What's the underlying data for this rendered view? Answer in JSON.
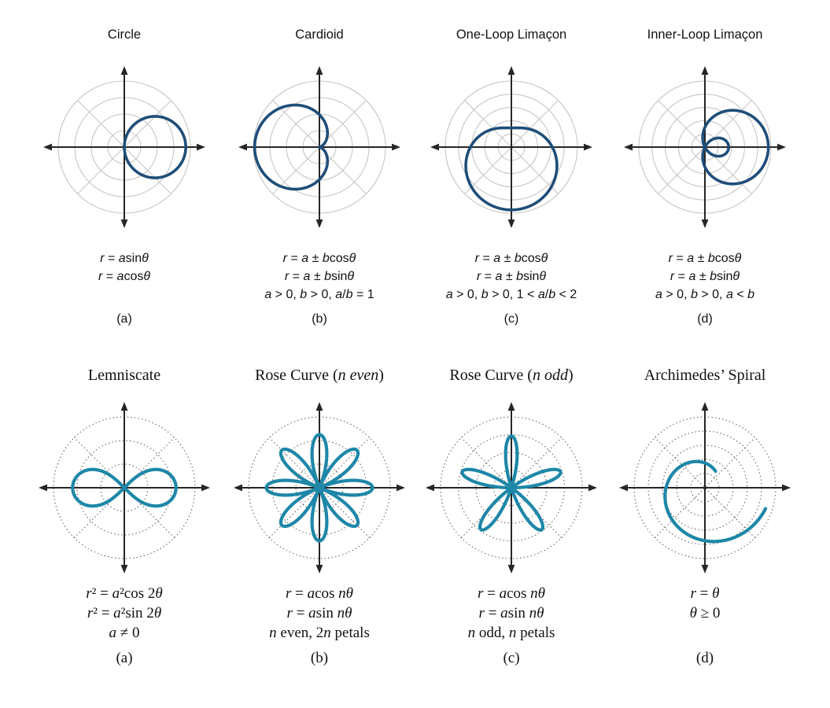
{
  "colors": {
    "background": "#ffffff",
    "text": "#111111",
    "axis": "#262626",
    "grid_solid": "#c6c6c6",
    "grid_dotted": "#4d4d4d",
    "curve_top": "#1f4e79",
    "curve_bottom": "#1e87a8"
  },
  "chart_data": [
    {
      "type": "line",
      "plot_style": "polar",
      "title": "Circle",
      "label": "(a)",
      "equations": [
        "r = asinθ",
        "r = acosθ"
      ],
      "grid": {
        "rings": 4,
        "line_style": "solid",
        "diagonal_angles_deg": [
          45,
          135
        ]
      },
      "curve": {
        "kind": "circle",
        "formula": "r = a·cosθ",
        "d": 0.93,
        "r_unit": "fraction of outer grid radius"
      },
      "curve_color": "#1f4e79"
    },
    {
      "type": "line",
      "plot_style": "polar",
      "title": "Cardioid",
      "label": "(b)",
      "equations": [
        "r = a ± bcosθ",
        "r = a ± bsinθ",
        "a > 0, b > 0, a/b = 1"
      ],
      "grid": {
        "rings": 4,
        "line_style": "solid",
        "diagonal_angles_deg": [
          45,
          135
        ]
      },
      "curve": {
        "kind": "cardioid",
        "formula": "r = a(1 − cosθ)",
        "a": 0.49,
        "r_unit": "fraction of outer grid radius"
      },
      "curve_color": "#1f4e79"
    },
    {
      "type": "line",
      "plot_style": "polar",
      "title": "One-Loop Limaçon",
      "label": "(c)",
      "equations": [
        "r = a ± bcosθ",
        "r = a ± bsinθ",
        "a > 0, b > 0, 1 < a/b < 2"
      ],
      "grid": {
        "rings": 5,
        "line_style": "solid",
        "diagonal_angles_deg": [
          45,
          135
        ]
      },
      "curve": {
        "kind": "limacon",
        "formula": "r = a − b·sinθ, 1 < a/b < 2",
        "a": 0.62,
        "b": -0.33,
        "trig": "sin",
        "r_unit": "fraction of outer grid radius"
      },
      "curve_color": "#1f4e79"
    },
    {
      "type": "line",
      "plot_style": "polar",
      "title": "Inner-Loop Limaçon",
      "label": "(d)",
      "equations": [
        "r = a ± bcosθ",
        "r = a ± bsinθ",
        "a > 0, b > 0, a < b"
      ],
      "grid": {
        "rings": 5,
        "line_style": "solid",
        "diagonal_angles_deg": [
          45,
          135
        ]
      },
      "curve": {
        "kind": "limacon",
        "formula": "r = a + b·cosθ, a < b",
        "a": 0.3,
        "b": 0.66,
        "trig": "cos",
        "r_unit": "fraction of outer grid radius"
      },
      "curve_color": "#1f4e79"
    },
    {
      "type": "line",
      "plot_style": "polar",
      "title": "Lemniscate",
      "label": "(a)",
      "equations": [
        "r² = a²cos 2θ",
        "r² = a²sin 2θ",
        "a ≠ 0"
      ],
      "grid": {
        "rings": 3,
        "line_style": "dotted",
        "diagonal_angles_deg": [
          45,
          135
        ]
      },
      "curve": {
        "kind": "lemniscate",
        "formula": "r² = a²·cos 2θ",
        "a": 0.73,
        "r_unit": "fraction of outer grid radius"
      },
      "curve_color": "#1e87a8"
    },
    {
      "type": "line",
      "plot_style": "polar",
      "title": "Rose Curve (n even)",
      "label": "(b)",
      "equations": [
        "r = acos nθ",
        "r = asin nθ",
        "n even, 2n petals"
      ],
      "grid": {
        "rings": 3,
        "line_style": "dotted",
        "diagonal_angles_deg": [
          45,
          135
        ]
      },
      "curve": {
        "kind": "rose",
        "formula": "r = a·cos 4θ (8 petals)",
        "a": 0.75,
        "n": 4,
        "trig": "cos",
        "r_unit": "fraction of outer grid radius"
      },
      "curve_color": "#1e87a8"
    },
    {
      "type": "line",
      "plot_style": "polar",
      "title": "Rose Curve (n odd)",
      "label": "(c)",
      "equations": [
        "r = acos nθ",
        "r = asin nθ",
        "n odd, n petals"
      ],
      "grid": {
        "rings": 4,
        "line_style": "dotted",
        "diagonal_angles_deg": [
          45,
          135
        ]
      },
      "curve": {
        "kind": "rose",
        "formula": "r = a·sin 5θ (5 petals)",
        "a": 0.73,
        "n": 5,
        "trig": "sin",
        "r_unit": "fraction of outer grid radius"
      },
      "curve_color": "#1e87a8"
    },
    {
      "type": "line",
      "plot_style": "polar",
      "title": "Archimedes’ Spiral",
      "label": "(d)",
      "equations": [
        "r = θ",
        "θ ≥ 0"
      ],
      "grid": {
        "rings": 5,
        "line_style": "dotted",
        "diagonal_angles_deg": [
          45,
          135
        ]
      },
      "curve": {
        "kind": "spiral",
        "formula": "r = θ, θ ≥ 0",
        "a": 0.15,
        "b": 0.127,
        "t0": 1.0,
        "t1": 5.95,
        "r_unit": "fraction of outer grid radius"
      },
      "curve_color": "#1e87a8"
    }
  ]
}
